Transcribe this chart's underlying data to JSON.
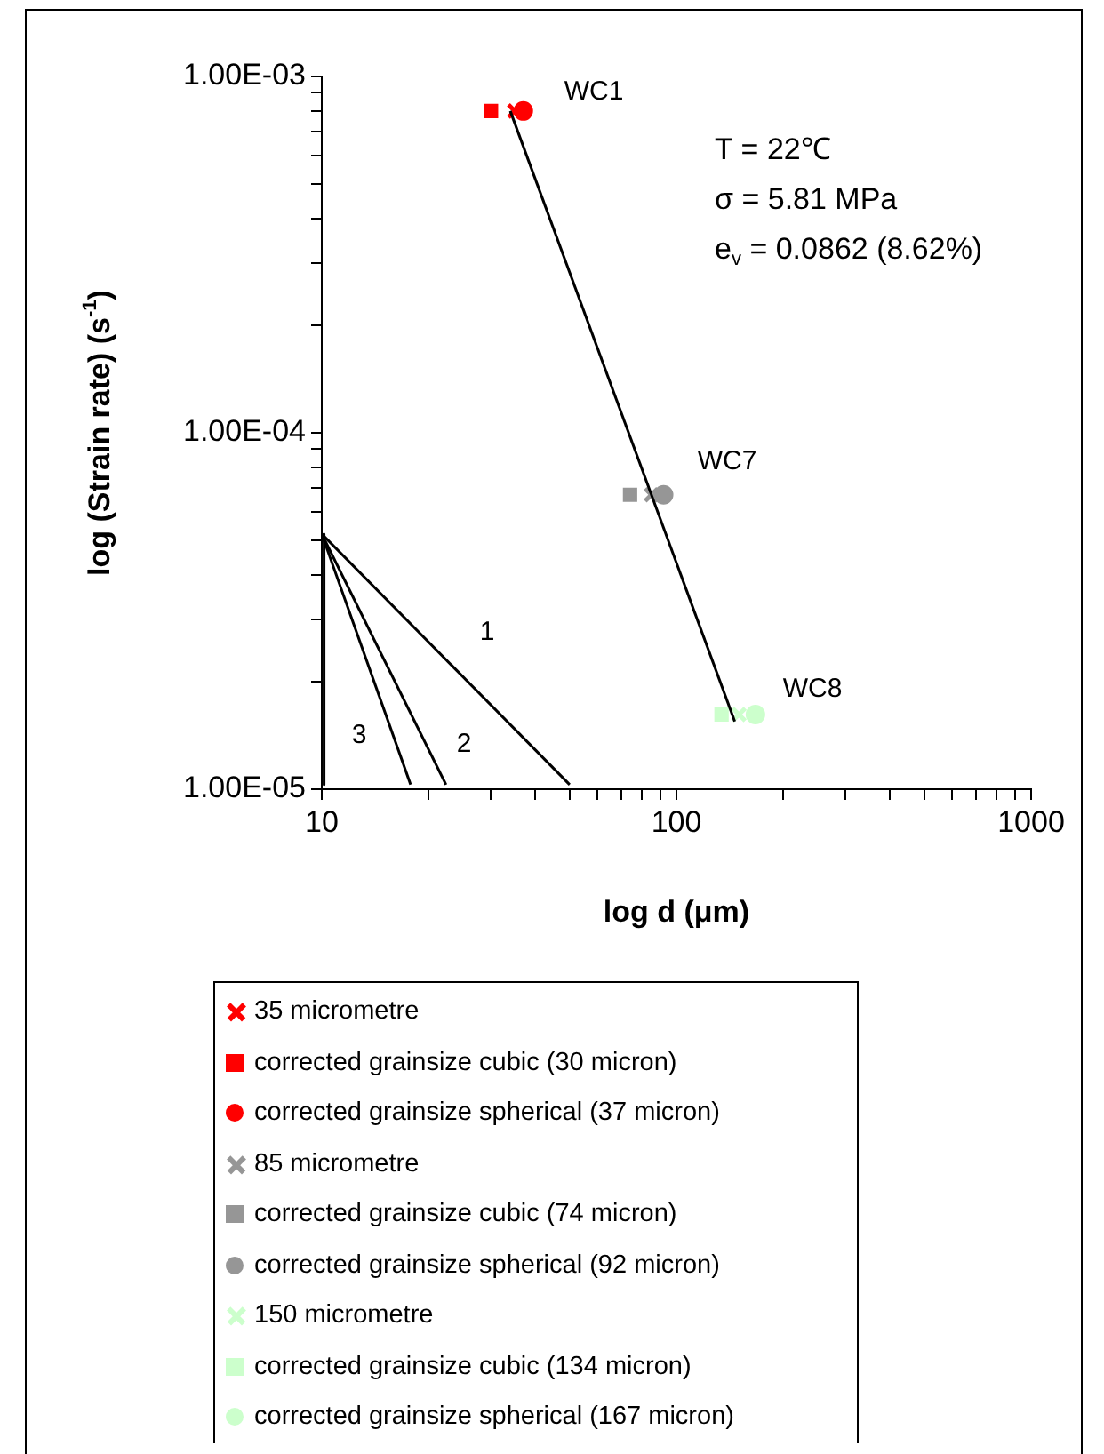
{
  "chart_data": {
    "type": "scatter",
    "xlabel": "log d (μm)",
    "ylabel": "log (Strain rate) (s$^{-1}$)",
    "xlim": [
      10,
      1000
    ],
    "ylim": [
      1e-05,
      0.001
    ],
    "xticks": [
      10,
      {
        "value": 20,
        "label": null
      },
      {
        "value": 30,
        "label": null
      },
      {
        "value": 40,
        "label": null
      },
      {
        "value": 50,
        "label": null
      },
      {
        "value": 60,
        "label": null
      },
      {
        "value": 70,
        "label": null
      },
      {
        "value": 80,
        "label": null
      },
      {
        "value": 90,
        "label": null
      },
      100,
      {
        "value": 200,
        "label": null
      },
      {
        "value": 300,
        "label": null
      },
      {
        "value": 400,
        "label": null
      },
      {
        "value": 500,
        "label": null
      },
      {
        "value": 600,
        "label": null
      },
      {
        "value": 700,
        "label": null
      },
      {
        "value": 800,
        "label": null
      },
      {
        "value": 900,
        "label": null
      },
      1000
    ],
    "yticks": [
      {
        "value": 1e-05,
        "label": "1.00E-05"
      },
      {
        "value": 2e-05,
        "label": null
      },
      {
        "value": 3e-05,
        "label": null
      },
      {
        "value": 4e-05,
        "label": null
      },
      {
        "value": 5e-05,
        "label": null
      },
      {
        "value": 6e-05,
        "label": null
      },
      {
        "value": 7e-05,
        "label": null
      },
      {
        "value": 8e-05,
        "label": null
      },
      {
        "value": 9e-05,
        "label": null
      },
      {
        "value": 0.0001,
        "label": "1.00E-04"
      },
      {
        "value": 0.0002,
        "label": null
      },
      {
        "value": 0.0003,
        "label": null
      },
      {
        "value": 0.0004,
        "label": null
      },
      {
        "value": 0.0005,
        "label": null
      },
      {
        "value": 0.0006,
        "label": null
      },
      {
        "value": 0.0007,
        "label": null
      },
      {
        "value": 0.0008,
        "label": null
      },
      {
        "value": 0.0009,
        "label": null
      },
      {
        "value": 0.001,
        "label": "1.00E-03"
      }
    ],
    "log": "xy",
    "legend": "bottom",
    "annotations": [
      "T = 22℃",
      "σ = 5.81 MPa",
      "e$_{v}$ = 0.0862 (8.62%)",
      "WC1",
      "WC7",
      "WC8",
      "1",
      "2",
      "3"
    ],
    "series": [
      {
        "type": "line",
        "color": "#000000",
        "marker": "none",
        "x": [
          34,
          146
        ],
        "values": [
          0.0008,
          1.55e-05
        ]
      },
      {
        "type": "line",
        "color": "#000000",
        "marker": "none",
        "x": [
          10,
          50
        ],
        "values": [
          5.2e-05,
          1.03e-05
        ]
      },
      {
        "type": "line",
        "color": "#000000",
        "marker": "none",
        "x": [
          10,
          22.4
        ],
        "values": [
          5.2e-05,
          1.03e-05
        ]
      },
      {
        "type": "line",
        "color": "#000000",
        "marker": "none",
        "x": [
          10,
          17.8
        ],
        "values": [
          5.2e-05,
          1.03e-05
        ]
      },
      {
        "type": "line",
        "color": "#000000",
        "marker": "none",
        "x": [
          10.15,
          10.15
        ],
        "values": [
          5.2e-05,
          1.03e-05
        ]
      },
      {
        "name": "35 micrometre",
        "color": "#ff0000",
        "marker": "cross",
        "x": [
          35
        ],
        "values": [
          0.0008
        ]
      },
      {
        "name": "corrected grainsize cubic (30 micron)",
        "color": "#ff0000",
        "marker": "square",
        "x": [
          30
        ],
        "values": [
          0.0008
        ]
      },
      {
        "name": "corrected grainsize spherical (37 micron)",
        "color": "#ff0000",
        "marker": "circle",
        "x": [
          37
        ],
        "values": [
          0.0008
        ]
      },
      {
        "name": "85 micrometre",
        "color": "#969696",
        "marker": "cross",
        "x": [
          85
        ],
        "values": [
          6.7e-05
        ]
      },
      {
        "name": "corrected grainsize cubic (74 micron)",
        "color": "#969696",
        "marker": "square",
        "x": [
          74
        ],
        "values": [
          6.7e-05
        ]
      },
      {
        "name": "corrected grainsize spherical (92 micron)",
        "color": "#969696",
        "marker": "circle",
        "x": [
          92
        ],
        "values": [
          6.7e-05
        ]
      },
      {
        "name": "150 micrometre",
        "color": "#ccffcc",
        "marker": "cross",
        "x": [
          150
        ],
        "values": [
          1.62e-05
        ]
      },
      {
        "name": "corrected grainsize cubic (134 micron)",
        "color": "#ccffcc",
        "marker": "square",
        "x": [
          134
        ],
        "values": [
          1.62e-05
        ]
      },
      {
        "name": "corrected grainsize spherical (167 micron)",
        "color": "#ccffcc",
        "marker": "circle",
        "x": [
          167
        ],
        "values": [
          1.62e-05
        ]
      }
    ]
  }
}
